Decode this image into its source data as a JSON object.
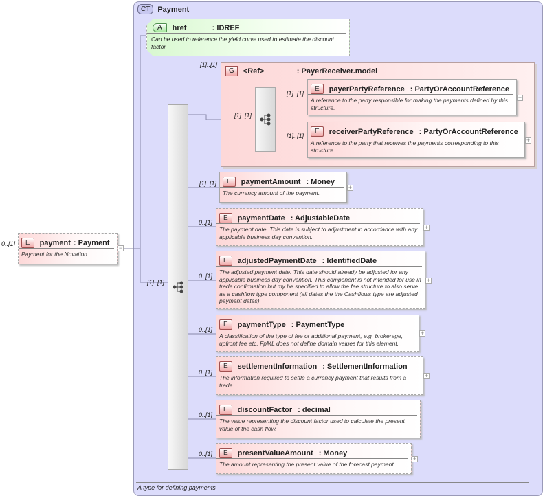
{
  "complex_type": {
    "badge": "CT",
    "name": "Payment",
    "description": "A type for defining payments"
  },
  "root_element": {
    "badge": "E",
    "name": "payment",
    "type": ": Payment",
    "description": "Payment for the Novation.",
    "cardinality": "0..[1]",
    "toggle": "−"
  },
  "attribute": {
    "badge": "A",
    "name": "href",
    "type": ": IDREF",
    "description": "Can be used to reference the yield curve used to estimate the discount factor"
  },
  "group": {
    "badge": "G",
    "name": "<Ref>",
    "type": ": PayerReceiver.model",
    "cardinality": "[1]..[1]",
    "sequence_cardinality": "[1]..[1]",
    "elements": [
      {
        "badge": "E",
        "name": "payerPartyReference",
        "type": ": PartyOrAccountReference",
        "description": "A reference to the party responsible for making the payments defined by this structure.",
        "cardinality": "[1]..[1]",
        "toggle": "+"
      },
      {
        "badge": "E",
        "name": "receiverPartyReference",
        "type": ": PartyOrAccountReference",
        "description": "A reference to the party that receives the payments corresponding to this structure.",
        "cardinality": "[1]..[1]",
        "toggle": "+"
      }
    ]
  },
  "sequence": {
    "cardinality": "[1]..[1]"
  },
  "elements": [
    {
      "badge": "E",
      "name": "paymentAmount",
      "type": ": Money",
      "description": "The currency amount of the payment.",
      "cardinality": "[1]..[1]",
      "toggle": "+"
    },
    {
      "badge": "E",
      "name": "paymentDate",
      "type": ": AdjustableDate",
      "description": "The payment date. This date is subject to adjustment in accordance with any applicable business day convention.",
      "cardinality": "0..[1]",
      "toggle": "+"
    },
    {
      "badge": "E",
      "name": "adjustedPaymentDate",
      "type": ": IdentifiedDate",
      "description": "The adjusted payment date. This date should already be adjusted for any applicable business day convention. This component is not intended for use in trade confirmation but my be specified to allow the fee structure to also serve as a cashflow type component (all dates the the Cashflows type are adjusted payment dates).",
      "cardinality": "0..[1]",
      "toggle": "+"
    },
    {
      "badge": "E",
      "name": "paymentType",
      "type": ": PaymentType",
      "description": "A classification of the type of fee or additional payment, e.g. brokerage, upfront fee etc. FpML does not define domain values for this element.",
      "cardinality": "0..[1]",
      "toggle": "+"
    },
    {
      "badge": "E",
      "name": "settlementInformation",
      "type": ": SettlementInformation",
      "description": "The information required to settle a currency payment that results from a trade.",
      "cardinality": "0..[1]",
      "toggle": "+"
    },
    {
      "badge": "E",
      "name": "discountFactor",
      "type": ": decimal",
      "description": "The value representing the discount factor used to calculate the present value of the cash flow.",
      "cardinality": "0..[1]"
    },
    {
      "badge": "E",
      "name": "presentValueAmount",
      "type": ": Money",
      "description": "The amount representing the present value of the forecast payment.",
      "cardinality": "0..[1]",
      "toggle": "+"
    }
  ]
}
